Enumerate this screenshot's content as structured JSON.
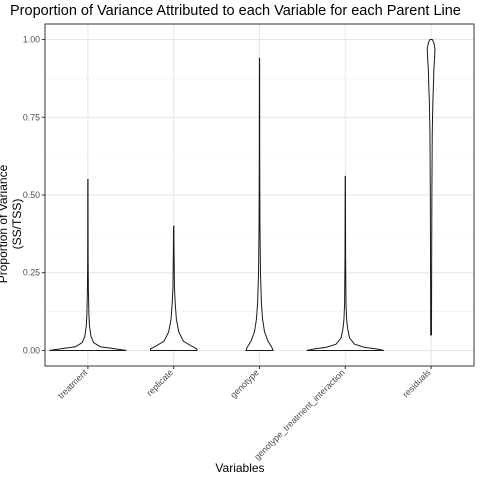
{
  "chart_data": {
    "type": "violin",
    "title": "Proportion of Variance Attributed to each Variable for each Parent Line",
    "xlabel": "Variables",
    "ylabel": "Proportion of Variance (SS/TSS)",
    "ylim": [
      -0.05,
      1.05
    ],
    "yticks": [
      0.0,
      0.25,
      0.5,
      0.75,
      1.0
    ],
    "ytick_labels": [
      "0.00",
      "0.25",
      "0.50",
      "0.75",
      "1.00"
    ],
    "grid": true,
    "categories": [
      "treatment",
      "replicate",
      "genotype",
      "genotype_treatment_interaction",
      "residuals"
    ],
    "violins": [
      {
        "category": "treatment",
        "min": 0.0,
        "max": 0.55,
        "profile": [
          [
            0.0,
            1.0
          ],
          [
            0.005,
            0.72
          ],
          [
            0.012,
            0.32
          ],
          [
            0.025,
            0.15
          ],
          [
            0.045,
            0.08
          ],
          [
            0.08,
            0.04
          ],
          [
            0.12,
            0.025
          ],
          [
            0.2,
            0.012
          ],
          [
            0.3,
            0.006
          ],
          [
            0.55,
            0.003
          ]
        ]
      },
      {
        "category": "replicate",
        "min": 0.0,
        "max": 0.4,
        "profile": [
          [
            0.0,
            0.6
          ],
          [
            0.005,
            0.6
          ],
          [
            0.015,
            0.45
          ],
          [
            0.03,
            0.25
          ],
          [
            0.06,
            0.13
          ],
          [
            0.1,
            0.07
          ],
          [
            0.15,
            0.04
          ],
          [
            0.2,
            0.02
          ],
          [
            0.3,
            0.01
          ],
          [
            0.4,
            0.004
          ]
        ]
      },
      {
        "category": "genotype",
        "min": 0.0,
        "max": 0.94,
        "profile": [
          [
            0.0,
            0.35
          ],
          [
            0.01,
            0.32
          ],
          [
            0.03,
            0.22
          ],
          [
            0.06,
            0.13
          ],
          [
            0.1,
            0.08
          ],
          [
            0.15,
            0.05
          ],
          [
            0.25,
            0.025
          ],
          [
            0.4,
            0.012
          ],
          [
            0.6,
            0.006
          ],
          [
            0.94,
            0.003
          ]
        ]
      },
      {
        "category": "genotype_treatment_interaction",
        "min": 0.0,
        "max": 0.56,
        "profile": [
          [
            0.0,
            1.0
          ],
          [
            0.005,
            0.8
          ],
          [
            0.01,
            0.5
          ],
          [
            0.02,
            0.24
          ],
          [
            0.04,
            0.11
          ],
          [
            0.07,
            0.06
          ],
          [
            0.1,
            0.035
          ],
          [
            0.15,
            0.018
          ],
          [
            0.3,
            0.008
          ],
          [
            0.56,
            0.003
          ]
        ]
      },
      {
        "category": "residuals",
        "min": 0.05,
        "max": 1.0,
        "profile": [
          [
            0.05,
            0.01
          ],
          [
            0.3,
            0.015
          ],
          [
            0.5,
            0.02
          ],
          [
            0.7,
            0.03
          ],
          [
            0.8,
            0.045
          ],
          [
            0.85,
            0.06
          ],
          [
            0.9,
            0.07
          ],
          [
            0.94,
            0.09
          ],
          [
            0.97,
            0.1
          ],
          [
            0.99,
            0.07
          ],
          [
            1.0,
            0.03
          ]
        ]
      }
    ]
  }
}
